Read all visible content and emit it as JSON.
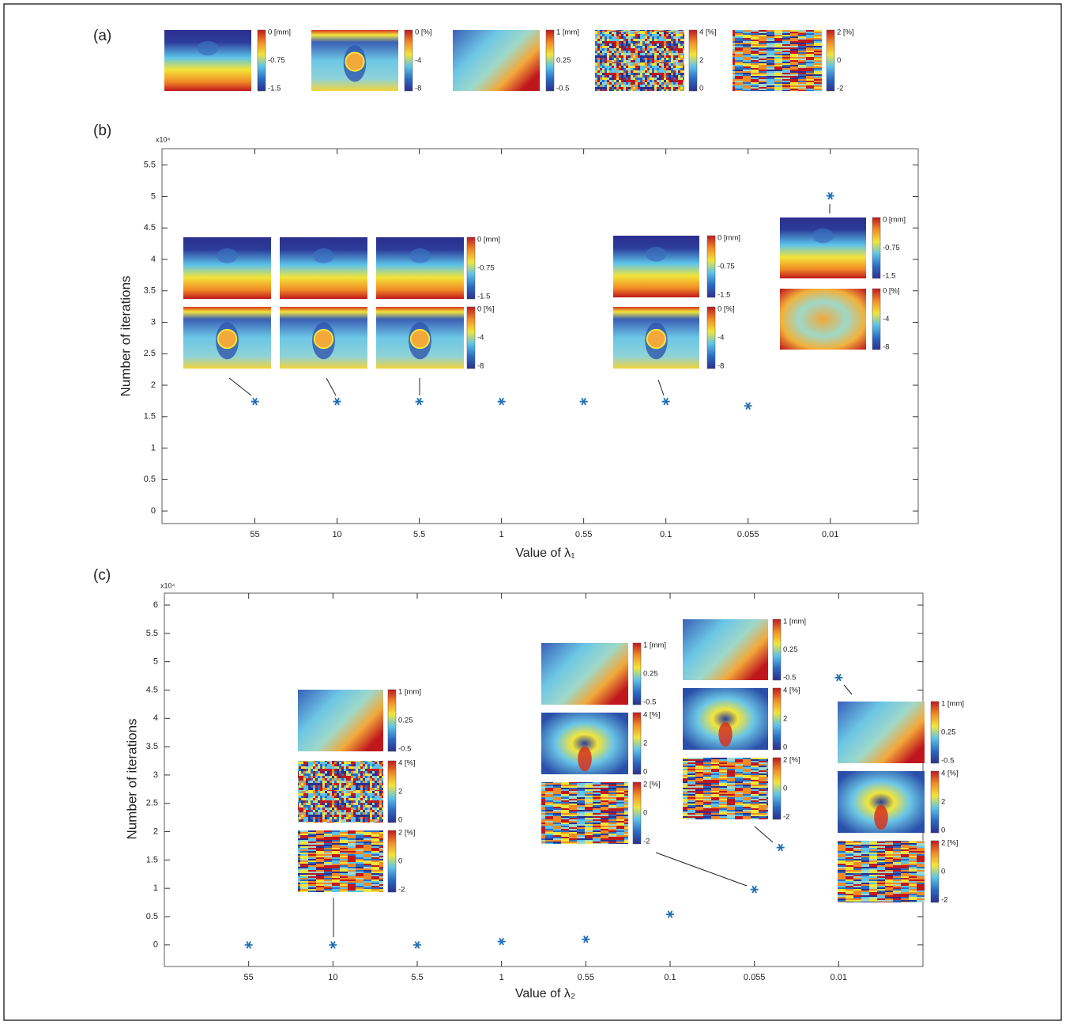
{
  "panel_a": {
    "label": "(a)",
    "colorbars": [
      [
        "0 [mm]",
        "-0.75",
        "-1.5"
      ],
      [
        "0 [%]",
        "-4",
        "-8"
      ],
      [
        "1 [mm]",
        "0.25",
        "-0.5"
      ],
      [
        "4 [%]",
        "2",
        "0"
      ],
      [
        "2 [%]",
        "0",
        "-2"
      ]
    ]
  },
  "chart_data": [
    {
      "type": "scatter",
      "panel_label": "(b)",
      "y_multiplier": "x10⁴",
      "xlabel": "Value of λ₁",
      "ylabel": "Number of iterations",
      "x": [
        1,
        2,
        3,
        4,
        5,
        6,
        7,
        8
      ],
      "values": [
        1.74,
        1.74,
        1.74,
        1.74,
        1.74,
        1.74,
        1.67,
        5.01
      ],
      "color": "#1f6fb5",
      "xlim": [
        -0.13,
        9.07
      ],
      "ylim": [
        -0.2,
        5.76
      ],
      "xticks": [
        {
          "value": 1,
          "label": "55"
        },
        {
          "value": 2,
          "label": "10"
        },
        {
          "value": 3,
          "label": "5.5"
        },
        {
          "value": 4,
          "label": "1"
        },
        {
          "value": 5,
          "label": "0.55"
        },
        {
          "value": 6,
          "label": "0.1"
        },
        {
          "value": 7,
          "label": "0.055"
        },
        {
          "value": 8,
          "label": "0.01"
        }
      ],
      "yticks": [
        0,
        0.5,
        1,
        1.5,
        2,
        2.5,
        3,
        3.5,
        4,
        4.5,
        5,
        5.5
      ],
      "insets": [
        {
          "colorbars": [
            [
              "0 [mm]",
              "-0.75",
              "-1.5"
            ],
            [
              "0 [%]",
              "-4",
              "-8"
            ]
          ]
        },
        {
          "colorbars": [
            [
              "0 [mm]",
              "-0.75",
              "-1.5"
            ],
            [
              "0 [%]",
              "-4",
              "-8"
            ]
          ]
        },
        {
          "colorbars": [
            [
              "0 [mm]",
              "-0.75",
              "-1.5"
            ],
            [
              "0 [%]",
              "-4",
              "-8"
            ]
          ]
        }
      ]
    },
    {
      "type": "scatter",
      "panel_label": "(c)",
      "y_multiplier": "x10⁴",
      "xlabel": "Value of λ₂",
      "ylabel": "Number of iterations",
      "x": [
        1,
        2,
        3,
        4,
        5,
        6,
        7,
        7.31,
        8
      ],
      "values": [
        0,
        0,
        0,
        0.06,
        0.1,
        0.54,
        0.98,
        1.72,
        4.72
      ],
      "color": "#1f6fb5",
      "xlim": [
        0,
        9
      ],
      "ylim": [
        -0.38,
        6.21
      ],
      "xticks": [
        {
          "value": 1,
          "label": "55"
        },
        {
          "value": 2,
          "label": "10"
        },
        {
          "value": 3,
          "label": "5.5"
        },
        {
          "value": 4,
          "label": "1"
        },
        {
          "value": 5,
          "label": "0.55"
        },
        {
          "value": 6,
          "label": "0.1"
        },
        {
          "value": 7,
          "label": "0.055"
        },
        {
          "value": 8,
          "label": "0.01"
        }
      ],
      "yticks": [
        0,
        0.5,
        1,
        1.5,
        2,
        2.5,
        3,
        3.5,
        4,
        4.5,
        5,
        5.5,
        6
      ],
      "insets": [
        {
          "colorbars": [
            [
              "1 [mm]",
              "0.25",
              "-0.5"
            ],
            [
              "4 [%]",
              "2",
              "0"
            ],
            [
              "2 [%]",
              "0",
              "-2"
            ]
          ]
        },
        {
          "colorbars": [
            [
              "1 [mm]",
              "0.25",
              "-0.5"
            ],
            [
              "4 [%]",
              "2",
              "0"
            ],
            [
              "2 [%]",
              "0",
              "-2"
            ]
          ]
        },
        {
          "colorbars": [
            [
              "1 [mm]",
              "0.25",
              "-0.5"
            ],
            [
              "4 [%]",
              "2",
              "0"
            ],
            [
              "2 [%]",
              "0",
              "-2"
            ]
          ]
        },
        {
          "colorbars": [
            [
              "1 [mm]",
              "0.25",
              "-0.5"
            ],
            [
              "4 [%]",
              "2",
              "0"
            ],
            [
              "2 [%]",
              "0",
              "-2"
            ]
          ]
        }
      ]
    }
  ]
}
